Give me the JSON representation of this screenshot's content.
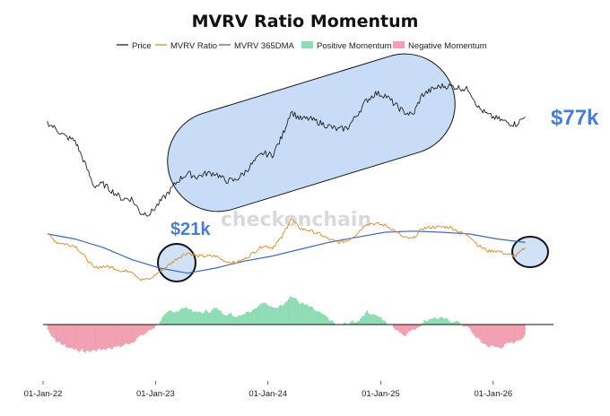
{
  "chart_data": {
    "type": "line",
    "title": "MVRV Ratio Momentum",
    "watermark": "checkonchain",
    "legend": [
      {
        "label": "Price",
        "color": "#222222",
        "kind": "line"
      },
      {
        "label": "MVRV Ratio",
        "color": "#d48a2a",
        "kind": "line"
      },
      {
        "label": "MVRV 365DMA",
        "color": "#3f68b5",
        "kind": "line"
      },
      {
        "label": "Positive Momentum",
        "color": "#8fdcb4",
        "kind": "area"
      },
      {
        "label": "Negative Momentum",
        "color": "#f0a0b0",
        "kind": "area"
      }
    ],
    "x_ticks": [
      "01-Jan-22",
      "01-Jan-23",
      "01-Jan-24",
      "01-Jan-25",
      "01-Jan-26"
    ],
    "x_range": [
      "2022-01-01",
      "2026-07-01"
    ],
    "annotations": [
      {
        "text": "$21k",
        "color": "#4a7fd0"
      },
      {
        "text": "$77k",
        "color": "#4a7fd0"
      }
    ],
    "series": [
      {
        "name": "Price",
        "x": [
          "2022-01",
          "2022-02",
          "2022-03",
          "2022-04",
          "2022-05",
          "2022-06",
          "2022-07",
          "2022-08",
          "2022-09",
          "2022-10",
          "2022-11",
          "2022-12",
          "2023-01",
          "2023-02",
          "2023-03",
          "2023-04",
          "2023-05",
          "2023-06",
          "2023-07",
          "2023-08",
          "2023-09",
          "2023-10",
          "2023-11",
          "2023-12",
          "2024-01",
          "2024-02",
          "2024-03",
          "2024-04",
          "2024-05",
          "2024-06",
          "2024-07",
          "2024-08",
          "2024-09",
          "2024-10",
          "2024-11",
          "2024-12",
          "2025-01",
          "2025-02",
          "2025-03",
          "2025-04",
          "2025-05",
          "2025-06",
          "2025-07",
          "2025-08",
          "2025-09",
          "2025-10",
          "2025-11",
          "2025-12",
          "2026-01",
          "2026-02",
          "2026-03",
          "2026-04"
        ],
        "values": [
          0.8,
          0.76,
          0.72,
          0.7,
          0.58,
          0.45,
          0.46,
          0.42,
          0.38,
          0.38,
          0.3,
          0.3,
          0.36,
          0.42,
          0.48,
          0.52,
          0.5,
          0.52,
          0.52,
          0.48,
          0.48,
          0.52,
          0.58,
          0.63,
          0.62,
          0.72,
          0.86,
          0.82,
          0.82,
          0.8,
          0.78,
          0.76,
          0.77,
          0.84,
          0.92,
          0.96,
          0.95,
          0.9,
          0.86,
          0.84,
          0.95,
          0.98,
          1.0,
          1.0,
          0.99,
          0.98,
          0.88,
          0.84,
          0.82,
          0.8,
          0.79,
          0.83
        ]
      },
      {
        "name": "MVRV Ratio",
        "x": [
          "2022-01",
          "2022-02",
          "2022-03",
          "2022-04",
          "2022-05",
          "2022-06",
          "2022-07",
          "2022-08",
          "2022-09",
          "2022-10",
          "2022-11",
          "2022-12",
          "2023-01",
          "2023-02",
          "2023-03",
          "2023-04",
          "2023-05",
          "2023-06",
          "2023-07",
          "2023-08",
          "2023-09",
          "2023-10",
          "2023-11",
          "2023-12",
          "2024-01",
          "2024-02",
          "2024-03",
          "2024-04",
          "2024-05",
          "2024-06",
          "2024-07",
          "2024-08",
          "2024-09",
          "2024-10",
          "2024-11",
          "2024-12",
          "2025-01",
          "2025-02",
          "2025-03",
          "2025-04",
          "2025-05",
          "2025-06",
          "2025-07",
          "2025-08",
          "2025-09",
          "2025-10",
          "2025-11",
          "2025-12",
          "2026-01",
          "2026-02",
          "2026-03",
          "2026-04"
        ],
        "values": [
          2.2,
          1.95,
          1.9,
          1.85,
          1.55,
          1.2,
          1.25,
          1.22,
          1.1,
          1.12,
          0.85,
          0.88,
          1.1,
          1.3,
          1.5,
          1.65,
          1.55,
          1.55,
          1.55,
          1.4,
          1.35,
          1.45,
          1.65,
          1.85,
          1.8,
          2.1,
          2.65,
          2.35,
          2.3,
          2.2,
          2.05,
          1.95,
          2.0,
          2.2,
          2.5,
          2.5,
          2.45,
          2.3,
          2.1,
          2.05,
          2.35,
          2.4,
          2.4,
          2.4,
          2.25,
          2.15,
          1.85,
          1.7,
          1.7,
          1.6,
          1.55,
          1.8
        ]
      },
      {
        "name": "MVRV 365DMA",
        "x": [
          "2022-01",
          "2022-04",
          "2022-07",
          "2022-10",
          "2023-01",
          "2023-04",
          "2023-07",
          "2023-10",
          "2024-01",
          "2024-04",
          "2024-07",
          "2024-10",
          "2025-01",
          "2025-04",
          "2025-07",
          "2025-10",
          "2026-01",
          "2026-04"
        ],
        "values": [
          2.2,
          2.05,
          1.8,
          1.45,
          1.2,
          1.05,
          1.2,
          1.4,
          1.55,
          1.75,
          1.95,
          2.1,
          2.25,
          2.28,
          2.25,
          2.2,
          2.05,
          1.95
        ]
      },
      {
        "name": "Momentum",
        "x": [
          "2022-01",
          "2022-02",
          "2022-03",
          "2022-04",
          "2022-05",
          "2022-06",
          "2022-07",
          "2022-08",
          "2022-09",
          "2022-10",
          "2022-11",
          "2022-12",
          "2023-01",
          "2023-02",
          "2023-03",
          "2023-04",
          "2023-05",
          "2023-06",
          "2023-07",
          "2023-08",
          "2023-09",
          "2023-10",
          "2023-11",
          "2023-12",
          "2024-01",
          "2024-02",
          "2024-03",
          "2024-04",
          "2024-05",
          "2024-06",
          "2024-07",
          "2024-08",
          "2024-09",
          "2024-10",
          "2024-11",
          "2024-12",
          "2025-01",
          "2025-02",
          "2025-03",
          "2025-04",
          "2025-05",
          "2025-06",
          "2025-07",
          "2025-08",
          "2025-09",
          "2025-10",
          "2025-11",
          "2025-12",
          "2026-01",
          "2026-02",
          "2026-03",
          "2026-04"
        ],
        "values": [
          -0.15,
          -0.6,
          -0.75,
          -0.85,
          -0.95,
          -0.9,
          -0.85,
          -0.8,
          -0.75,
          -0.6,
          -0.4,
          -0.2,
          0.1,
          0.45,
          0.5,
          0.6,
          0.4,
          0.45,
          0.55,
          0.4,
          0.3,
          0.4,
          0.55,
          0.8,
          0.55,
          0.7,
          1.0,
          0.75,
          0.6,
          0.4,
          0.2,
          -0.05,
          0.05,
          0.1,
          0.45,
          0.35,
          0.1,
          -0.1,
          -0.35,
          -0.2,
          0.05,
          0.25,
          0.2,
          0.15,
          0.05,
          -0.15,
          -0.55,
          -0.75,
          -0.8,
          -0.7,
          -0.6,
          -0.35
        ]
      }
    ]
  }
}
